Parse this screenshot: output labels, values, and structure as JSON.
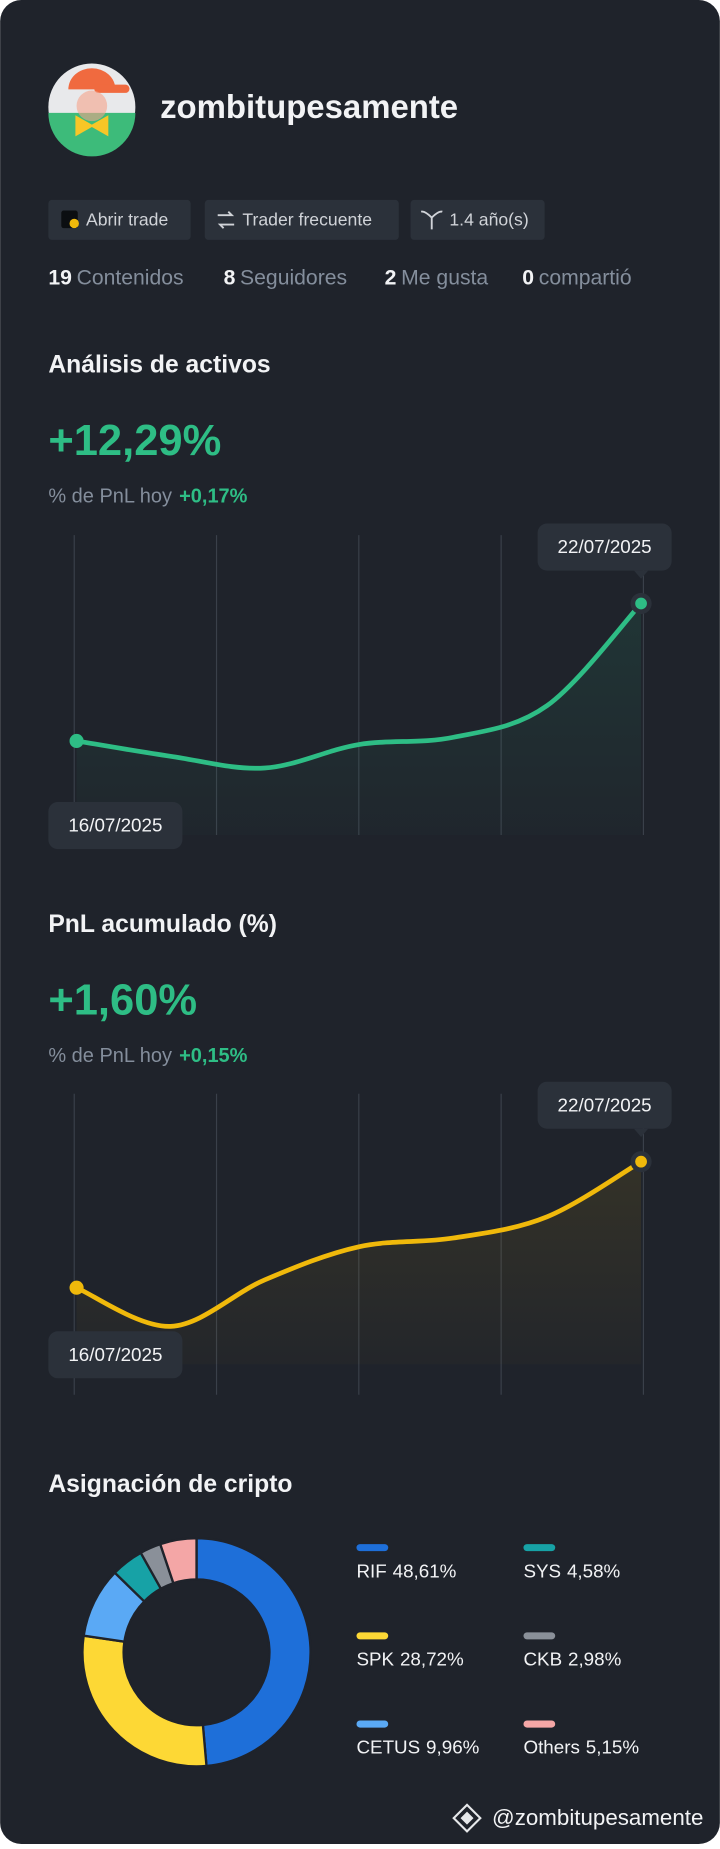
{
  "header": {
    "username": "zombitupesamente"
  },
  "badges": [
    "Abrir trade",
    "Trader frecuente",
    "1.4 año(s)"
  ],
  "stats": [
    {
      "value": "19",
      "label": "Contenidos"
    },
    {
      "value": "8",
      "label": "Seguidores"
    },
    {
      "value": "2",
      "label": "Me gusta"
    },
    {
      "value": "0",
      "label": "compartió"
    }
  ],
  "chart_data": [
    {
      "type": "line",
      "title": "Análisis de activos",
      "headline": "+12,29%",
      "subtitle": "% de PnL hoy",
      "change": "+0,17%",
      "categories": [
        "16/07/2025",
        null,
        null,
        null,
        null,
        null,
        "22/07/2025"
      ],
      "values": [
        0,
        -1.37,
        -2.42,
        -0.32,
        0.32,
        3.15,
        12.29
      ],
      "color": "#2ebd85",
      "ylim": [
        -5,
        15
      ]
    },
    {
      "type": "line",
      "title": "PnL acumulado (%)",
      "headline": "+1,60%",
      "subtitle": "% de PnL hoy",
      "change": "+0,15%",
      "categories": [
        "16/07/2025",
        null,
        null,
        null,
        null,
        null,
        "22/07/2025"
      ],
      "values": [
        0,
        -0.49,
        0.1,
        0.52,
        0.63,
        0.9,
        1.6
      ],
      "color": "#f0b90b",
      "ylim": [
        -1,
        2
      ]
    },
    {
      "type": "donut",
      "title": "Asignación de cripto",
      "categories": [
        "RIF",
        "SPK",
        "CETUS",
        "SYS",
        "CKB",
        "Others"
      ],
      "values": [
        48.61,
        28.72,
        9.96,
        4.58,
        2.98,
        5.15
      ],
      "value_labels": [
        "48,61%",
        "28,72%",
        "9,96%",
        "4,58%",
        "2,98%",
        "5,15%"
      ],
      "colors": [
        "#1e6fd9",
        "#fdd835",
        "#5aa9f5",
        "#17a2a6",
        "#8a9099",
        "#f4a6a6"
      ]
    }
  ],
  "footer": {
    "handle": "@zombitupesamente"
  }
}
